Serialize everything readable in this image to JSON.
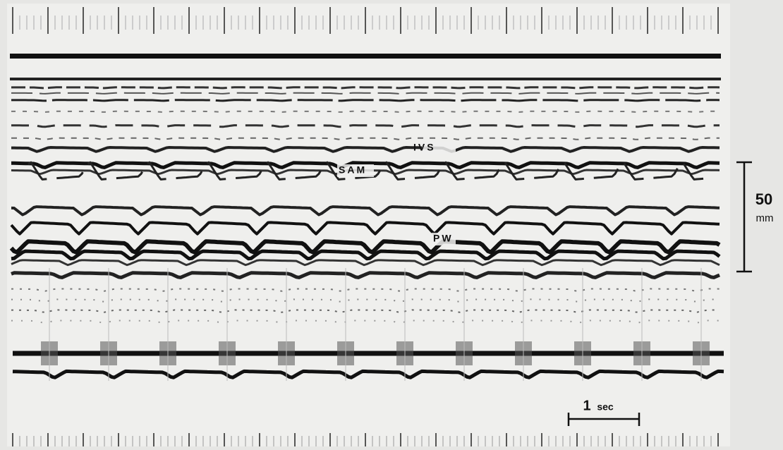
{
  "labels": {
    "ivs": "IVS",
    "sam": "SAM",
    "pw": "PW"
  },
  "depth_scale": {
    "value": "50",
    "unit": "mm"
  },
  "time_scale": {
    "value": "1",
    "unit": "sec"
  }
}
